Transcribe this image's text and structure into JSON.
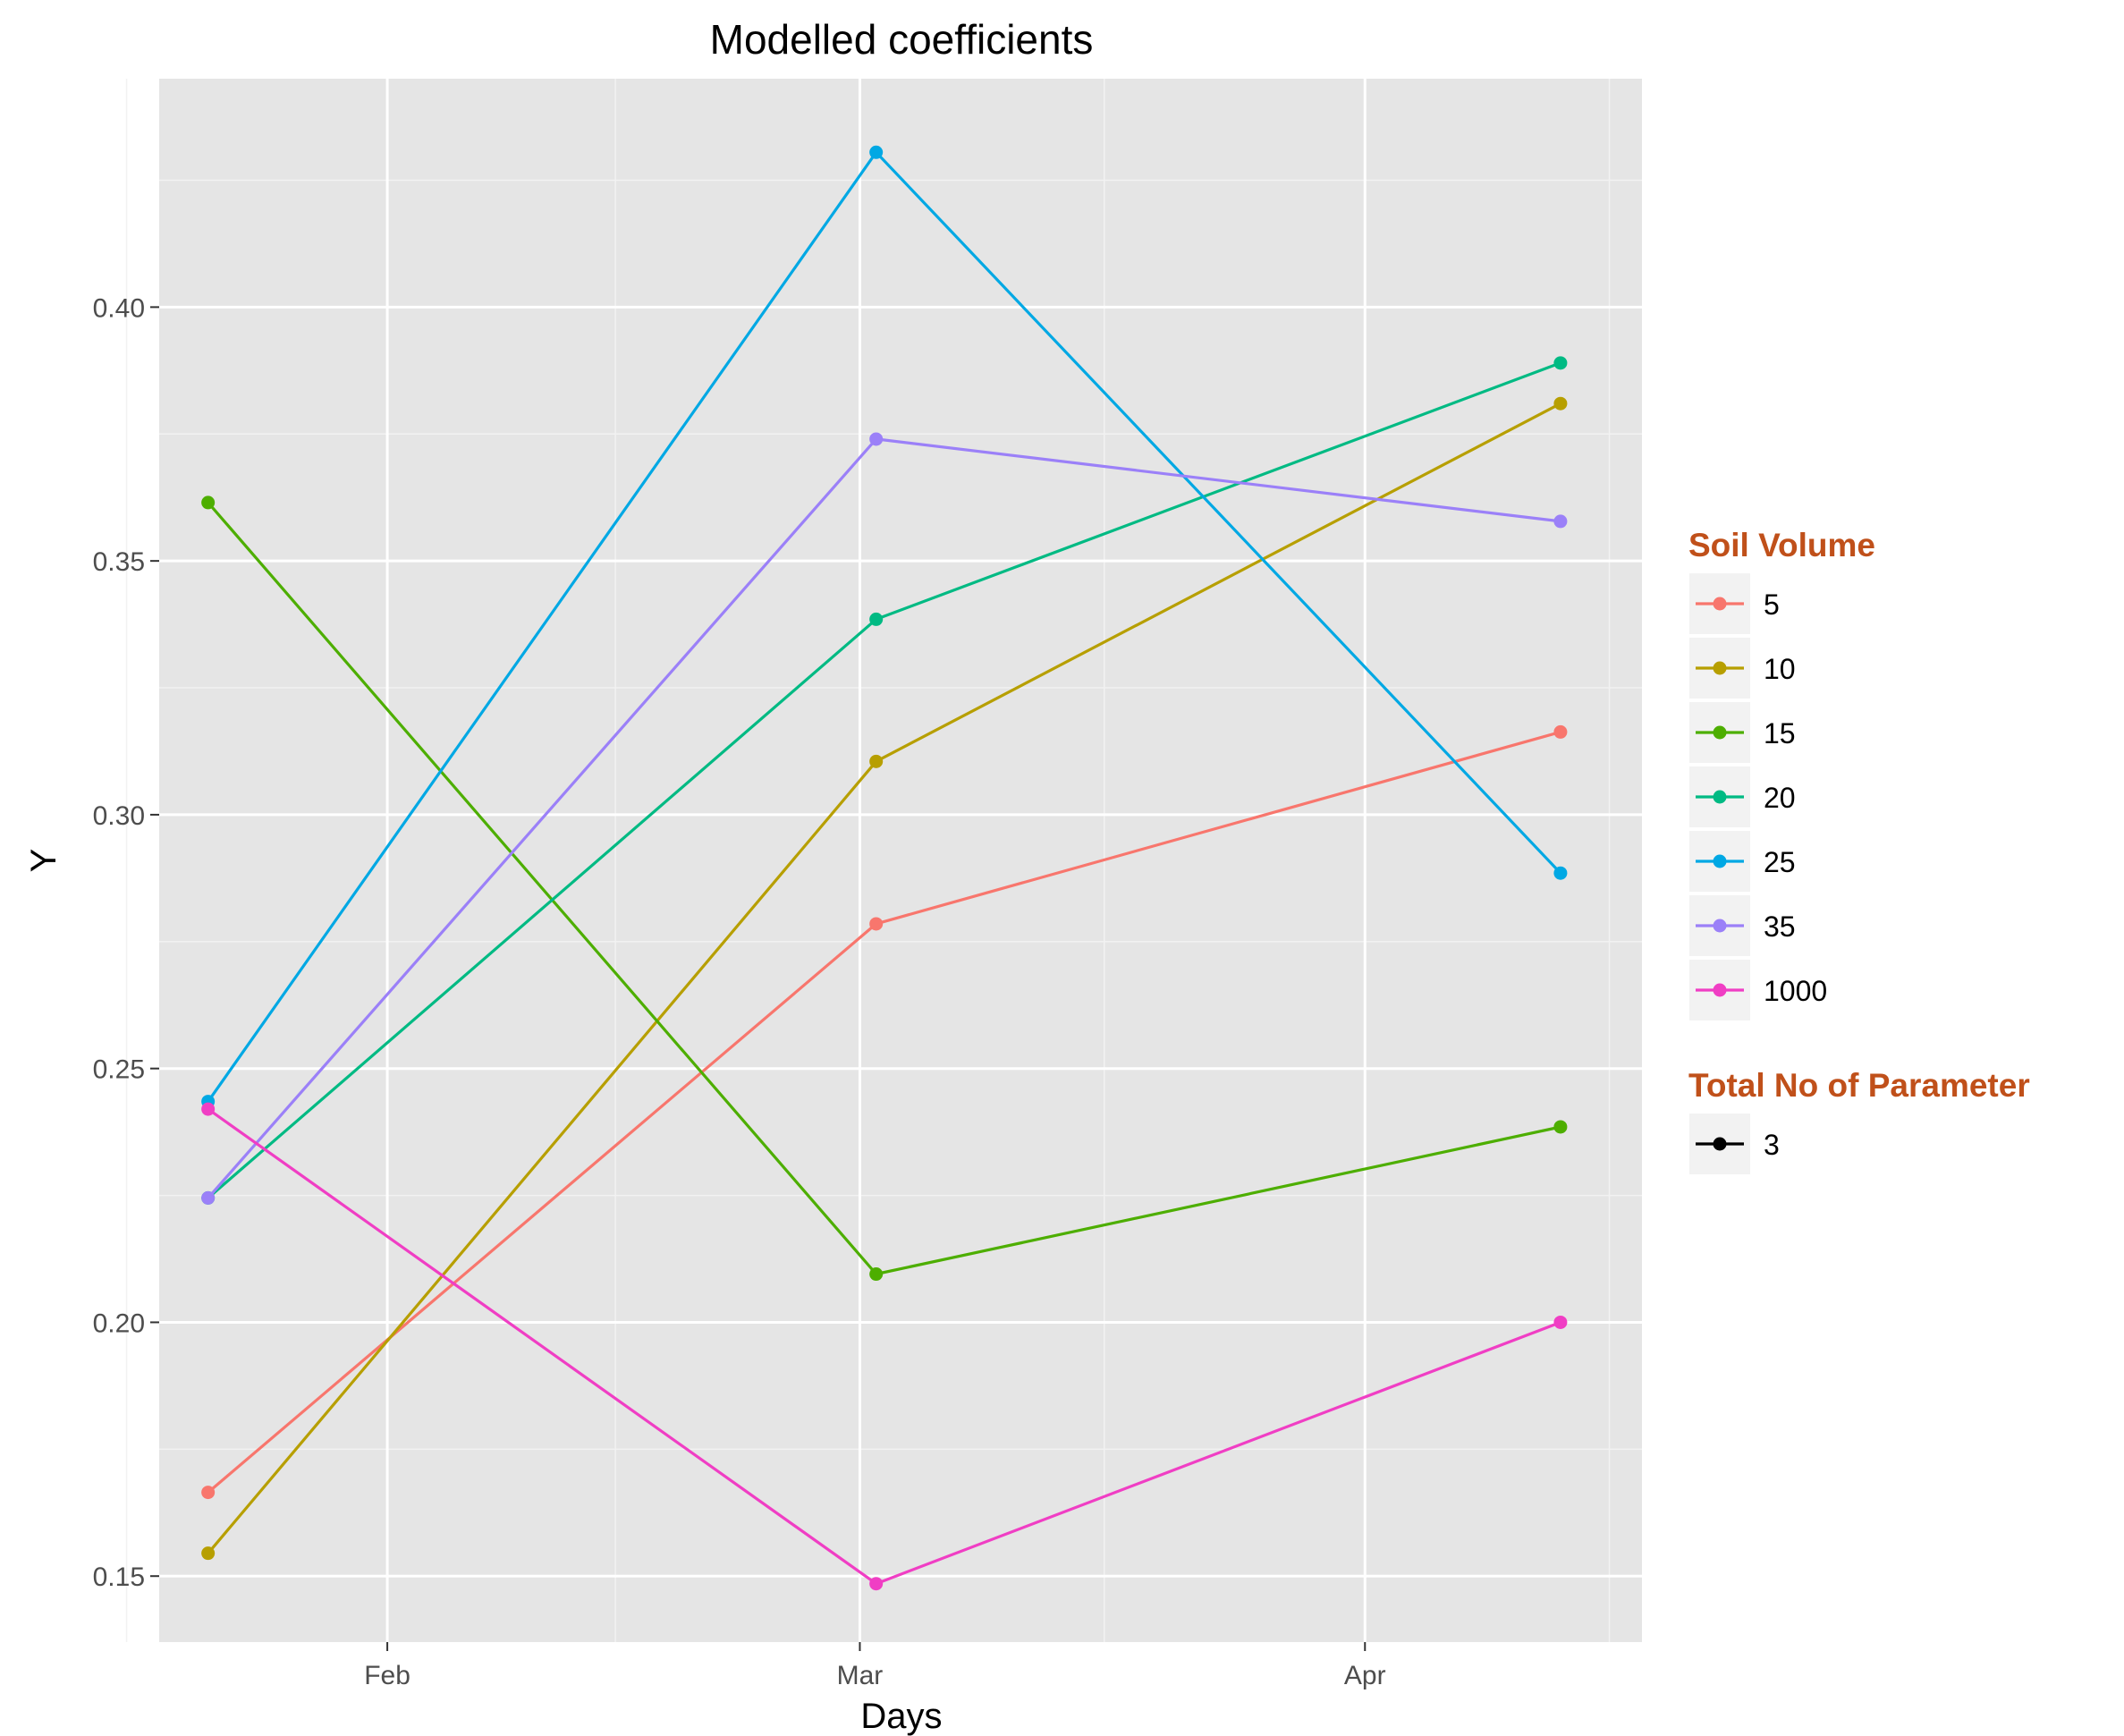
{
  "chart_data": {
    "type": "line",
    "title": "Modelled coefficients",
    "xlabel": "Days",
    "ylabel": "Y",
    "x_axis": {
      "type": "date",
      "range": [
        "2016-01-18",
        "2016-04-18"
      ],
      "ticks": [
        {
          "date": "2016-02-01",
          "label": "Feb"
        },
        {
          "date": "2016-03-01",
          "label": "Mar"
        },
        {
          "date": "2016-04-01",
          "label": "Apr"
        }
      ],
      "minor_ticks": [
        "2016-01-16",
        "2016-02-15",
        "2016-03-16",
        "2016-04-16"
      ]
    },
    "y_axis": {
      "range": [
        0.137,
        0.445
      ],
      "ticks": [
        {
          "value": 0.15,
          "label": "0.15"
        },
        {
          "value": 0.2,
          "label": "0.20"
        },
        {
          "value": 0.25,
          "label": "0.25"
        },
        {
          "value": 0.3,
          "label": "0.30"
        },
        {
          "value": 0.35,
          "label": "0.35"
        },
        {
          "value": 0.4,
          "label": "0.40"
        }
      ],
      "minor_ticks": [
        0.175,
        0.225,
        0.275,
        0.325,
        0.375,
        0.425
      ]
    },
    "grid": true,
    "legend_placement": "right",
    "series": [
      {
        "name": "5",
        "color": "#F8766D",
        "points": [
          {
            "x": "2016-01-21",
            "y": 0.1665
          },
          {
            "x": "2016-03-02",
            "y": 0.2785
          },
          {
            "x": "2016-04-13",
            "y": 0.3163
          }
        ]
      },
      {
        "name": "10",
        "color": "#B79F00",
        "points": [
          {
            "x": "2016-01-21",
            "y": 0.1545
          },
          {
            "x": "2016-03-02",
            "y": 0.3105
          },
          {
            "x": "2016-04-13",
            "y": 0.381
          }
        ]
      },
      {
        "name": "15",
        "color": "#4DAE00",
        "points": [
          {
            "x": "2016-01-21",
            "y": 0.3615
          },
          {
            "x": "2016-03-02",
            "y": 0.2095
          },
          {
            "x": "2016-04-13",
            "y": 0.2385
          }
        ]
      },
      {
        "name": "20",
        "color": "#00BA83",
        "points": [
          {
            "x": "2016-01-21",
            "y": 0.2245
          },
          {
            "x": "2016-03-02",
            "y": 0.3385
          },
          {
            "x": "2016-04-13",
            "y": 0.389
          }
        ]
      },
      {
        "name": "25",
        "color": "#00A8E4",
        "points": [
          {
            "x": "2016-01-21",
            "y": 0.2435
          },
          {
            "x": "2016-03-02",
            "y": 0.4305
          },
          {
            "x": "2016-04-13",
            "y": 0.2885
          }
        ]
      },
      {
        "name": "35",
        "color": "#9B80F8",
        "points": [
          {
            "x": "2016-01-21",
            "y": 0.2245
          },
          {
            "x": "2016-03-02",
            "y": 0.374
          },
          {
            "x": "2016-04-13",
            "y": 0.3578
          }
        ]
      },
      {
        "name": "1000",
        "color": "#F03EC4",
        "points": [
          {
            "x": "2016-01-21",
            "y": 0.242
          },
          {
            "x": "2016-03-02",
            "y": 0.1485
          },
          {
            "x": "2016-04-13",
            "y": 0.2
          }
        ]
      }
    ],
    "legends": [
      {
        "title": "Soil Volume",
        "title_color": "#C0501A",
        "entries": [
          "5",
          "10",
          "15",
          "20",
          "25",
          "35",
          "1000"
        ]
      },
      {
        "title": "Total No of Parameter",
        "title_color": "#C0501A",
        "entries": [
          {
            "label": "3",
            "color": "#000000"
          }
        ]
      }
    ]
  },
  "colors": {
    "panel_background": "#E5E5E5",
    "legend_key_background": "#F2F2F2",
    "grid_major": "#FFFFFF",
    "grid_minor": "#F2F2F2",
    "tick_label": "#4D4D4D"
  }
}
